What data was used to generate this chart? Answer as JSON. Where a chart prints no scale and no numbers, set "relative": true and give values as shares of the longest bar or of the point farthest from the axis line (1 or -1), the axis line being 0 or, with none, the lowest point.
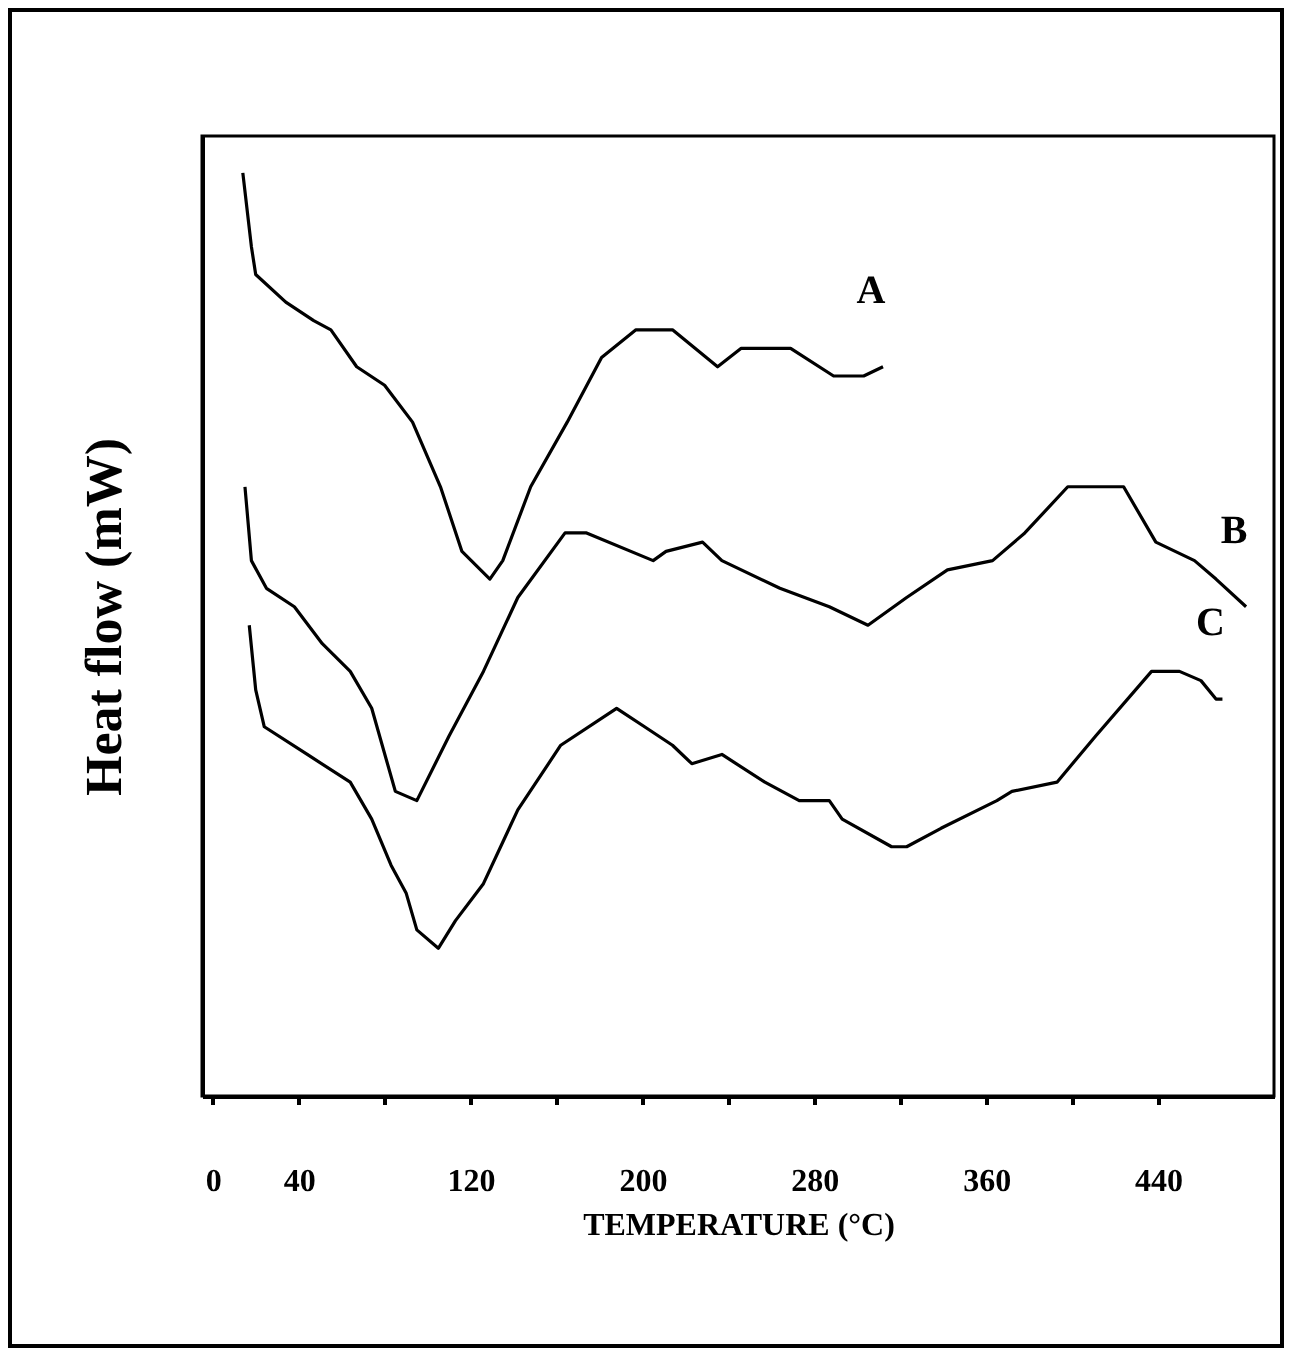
{
  "chart_data": {
    "type": "line",
    "relative": true,
    "xlabel": "TEMPERATURE (°C)",
    "ylabel": "Heat flow (mW)",
    "xlim": [
      -5,
      494
    ],
    "xticks": [
      0,
      40,
      {
        "value": 80,
        "label": null
      },
      120,
      {
        "value": 160,
        "label": null
      },
      200,
      {
        "value": 240,
        "label": null
      },
      280,
      {
        "value": 320,
        "label": null
      },
      360,
      {
        "value": 400,
        "label": null
      },
      440
    ],
    "tick_labels": "x",
    "grid": false,
    "legend": false,
    "marker": "none",
    "line_style": "solid",
    "series": [
      {
        "name": "A",
        "color": "#000000",
        "x": [
          14,
          18,
          20,
          34,
          47,
          55,
          67,
          80,
          93,
          106,
          116,
          129,
          135,
          148,
          165,
          181,
          197,
          214,
          235,
          246,
          269,
          289,
          303,
          312
        ],
        "values": [
          1,
          0.92,
          0.89,
          0.86,
          0.84,
          0.83,
          0.79,
          0.77,
          0.73,
          0.66,
          0.59,
          0.56,
          0.58,
          0.66,
          0.73,
          0.8,
          0.83,
          0.83,
          0.79,
          0.81,
          0.81,
          0.78,
          0.78,
          0.79
        ]
      },
      {
        "name": "B",
        "color": "#000000",
        "x": [
          15,
          18,
          25,
          38,
          51,
          64,
          74,
          85,
          95,
          110,
          126,
          142,
          164,
          174,
          205,
          211,
          228,
          237,
          264,
          287,
          305,
          323,
          342,
          363,
          378,
          398,
          424,
          439,
          457,
          467,
          481
        ],
        "values": [
          0.66,
          0.58,
          0.55,
          0.53,
          0.49,
          0.46,
          0.42,
          0.33,
          0.32,
          0.39,
          0.46,
          0.54,
          0.61,
          0.61,
          0.58,
          0.59,
          0.6,
          0.58,
          0.55,
          0.53,
          0.51,
          0.54,
          0.57,
          0.58,
          0.61,
          0.66,
          0.66,
          0.6,
          0.58,
          0.56,
          0.53
        ]
      },
      {
        "name": "C",
        "color": "#000000",
        "x": [
          17,
          20,
          24,
          44,
          64,
          74,
          83,
          90,
          95,
          105,
          113,
          126,
          142,
          162,
          188,
          201,
          214,
          223,
          237,
          257,
          273,
          287,
          293,
          316,
          323,
          339,
          365,
          372,
          393,
          411,
          437,
          450,
          460,
          467,
          470
        ],
        "values": [
          0.51,
          0.44,
          0.4,
          0.37,
          0.34,
          0.3,
          0.25,
          0.22,
          0.18,
          0.16,
          0.19,
          0.23,
          0.31,
          0.38,
          0.42,
          0.4,
          0.38,
          0.36,
          0.37,
          0.34,
          0.32,
          0.32,
          0.3,
          0.27,
          0.27,
          0.29,
          0.32,
          0.33,
          0.34,
          0.39,
          0.46,
          0.46,
          0.45,
          0.43,
          0.43
        ]
      }
    ]
  }
}
